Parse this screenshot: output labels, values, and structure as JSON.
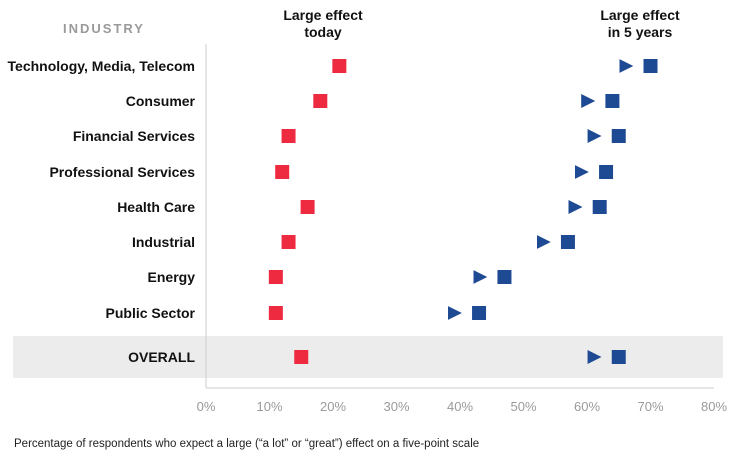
{
  "chart_data": {
    "type": "dumbbell-arrow",
    "category_header": "INDUSTRY",
    "today_label": [
      "Large effect",
      "today"
    ],
    "future_label": [
      "Large effect",
      "in 5 years"
    ],
    "x_ticks": [
      "0%",
      "10%",
      "20%",
      "30%",
      "40%",
      "50%",
      "60%",
      "70%",
      "80%"
    ],
    "xlim": [
      0,
      80
    ],
    "rows": [
      {
        "label": "Technology, Media, Telecom",
        "today": 21,
        "future": 70
      },
      {
        "label": "Consumer",
        "today": 18,
        "future": 64
      },
      {
        "label": "Financial Services",
        "today": 13,
        "future": 65
      },
      {
        "label": "Professional Services",
        "today": 12,
        "future": 63
      },
      {
        "label": "Health Care",
        "today": 16,
        "future": 62
      },
      {
        "label": "Industrial",
        "today": 13,
        "future": 57
      },
      {
        "label": "Energy",
        "today": 11,
        "future": 47
      },
      {
        "label": "Public Sector",
        "today": 11,
        "future": 43
      },
      {
        "label": "OVERALL",
        "today": 15,
        "future": 65,
        "highlight": true
      }
    ],
    "colors": {
      "today": "#ee2a40",
      "future": "#1e4a94",
      "highlight_band": "#ececec",
      "axis": "#cccccc",
      "tick": "#9a9a9a"
    }
  },
  "footnote": "Percentage of respondents who expect a large (“a lot” or “great”) effect on a five-point scale"
}
